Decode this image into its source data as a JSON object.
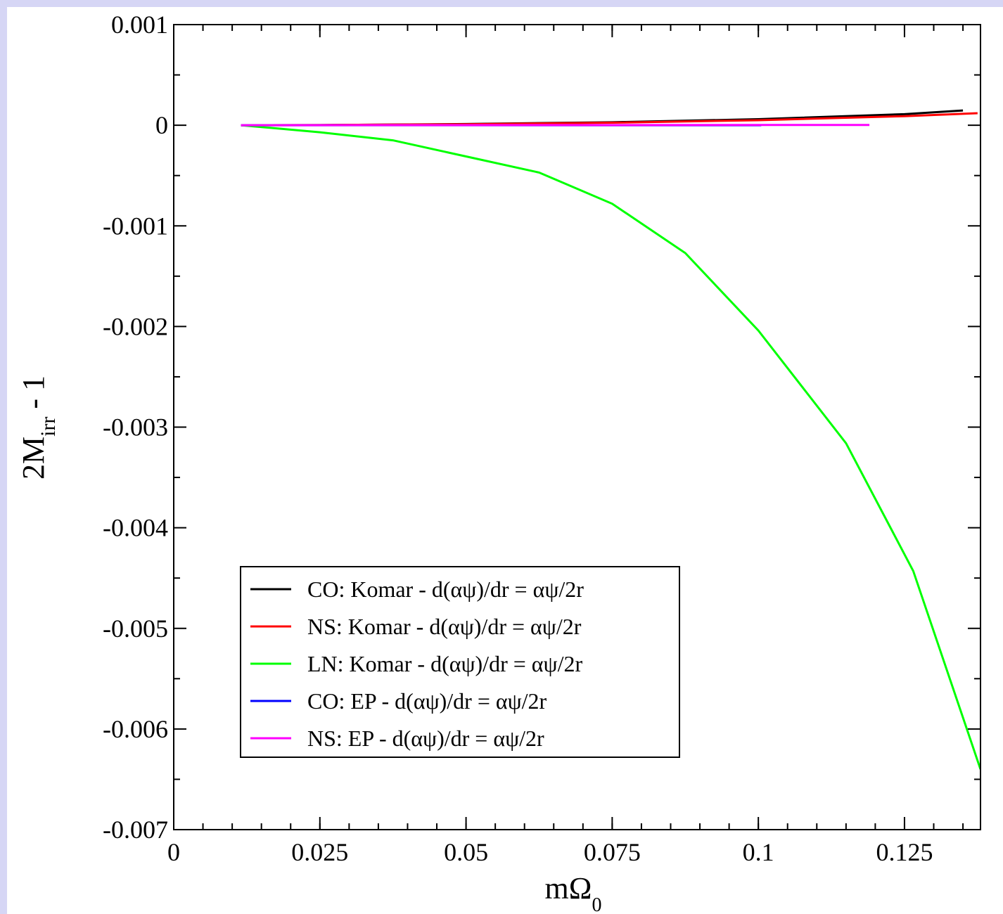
{
  "chart_data": {
    "type": "line",
    "x_label": {
      "main": "mΩ",
      "sub": "0"
    },
    "y_label": {
      "main": "2M",
      "sub": "irr",
      "tail": " - 1"
    },
    "xlim": [
      0,
      0.138
    ],
    "ylim": [
      -0.007,
      0.001
    ],
    "xticks": [
      0,
      0.025,
      0.05,
      0.075,
      0.1,
      0.125
    ],
    "yticks": [
      0.001,
      0,
      -0.001,
      -0.002,
      -0.003,
      -0.004,
      -0.005,
      -0.006,
      -0.007
    ],
    "x_minor_divisions": 5,
    "y_minor_divisions": 2,
    "legend_position": "lower left",
    "series": [
      {
        "name": "CO: Komar - d(αψ)/dr = αψ/2r",
        "color": "#000000",
        "x": [
          0.0115,
          0.025,
          0.05,
          0.075,
          0.1,
          0.125,
          0.135
        ],
        "values": [
          0,
          2e-06,
          1.2e-05,
          3e-05,
          6e-05,
          0.00011,
          0.000147
        ]
      },
      {
        "name": "NS: Komar - d(αψ)/dr = αψ/2r",
        "color": "#ff0000",
        "x": [
          0.0115,
          0.025,
          0.05,
          0.075,
          0.1,
          0.125,
          0.1375
        ],
        "values": [
          0,
          2e-06,
          1e-05,
          2.5e-05,
          5e-05,
          9e-05,
          0.00012
        ]
      },
      {
        "name": "LN: Komar - d(αψ)/dr = αψ/2r",
        "color": "#00ff00",
        "x": [
          0.0115,
          0.025,
          0.0375,
          0.05,
          0.0625,
          0.075,
          0.0875,
          0.1,
          0.115,
          0.1265,
          0.138
        ],
        "values": [
          0,
          -7e-05,
          -0.00015,
          -0.00031,
          -0.00047,
          -0.00078,
          -0.00127,
          -0.00204,
          -0.00316,
          -0.00443,
          -0.0064
        ]
      },
      {
        "name": "CO: EP - d(αψ)/dr = αψ/2r",
        "color": "#0000ff",
        "x": [
          0.0115,
          0.05,
          0.1005
        ],
        "values": [
          0,
          0,
          0
        ]
      },
      {
        "name": "NS: EP - d(αψ)/dr = αψ/2r",
        "color": "#ff00ff",
        "x": [
          0.0115,
          0.05,
          0.119
        ],
        "values": [
          0,
          1e-06,
          3e-06
        ]
      }
    ]
  }
}
